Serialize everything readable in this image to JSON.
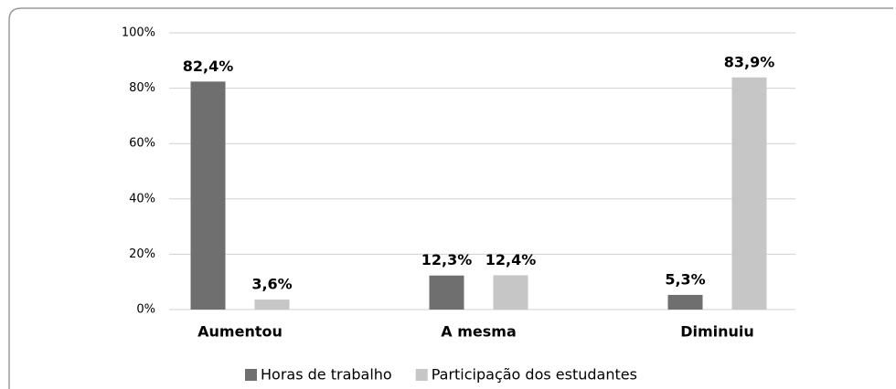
{
  "chart_data": {
    "type": "bar",
    "categories": [
      "Aumentou",
      "A mesma",
      "Diminuiu"
    ],
    "series": [
      {
        "name": "Horas de trabalho",
        "color": "#6f6f6f",
        "values": [
          82.4,
          12.3,
          5.3
        ],
        "value_labels": [
          "82,4%",
          "12,3%",
          "5,3%"
        ]
      },
      {
        "name": "Participação dos estudantes",
        "color": "#c6c6c6",
        "values": [
          3.6,
          12.4,
          83.9
        ],
        "value_labels": [
          "3,6%",
          "12,4%",
          "83,9%"
        ]
      }
    ],
    "ylim": [
      0,
      100
    ],
    "yticks": [
      {
        "value": 0,
        "label": "0%"
      },
      {
        "value": 20,
        "label": "20%"
      },
      {
        "value": 40,
        "label": "40%"
      },
      {
        "value": 60,
        "label": "60%"
      },
      {
        "value": 80,
        "label": "80%"
      },
      {
        "value": 100,
        "label": "100%"
      }
    ],
    "grid": true,
    "legend": "bottom"
  }
}
